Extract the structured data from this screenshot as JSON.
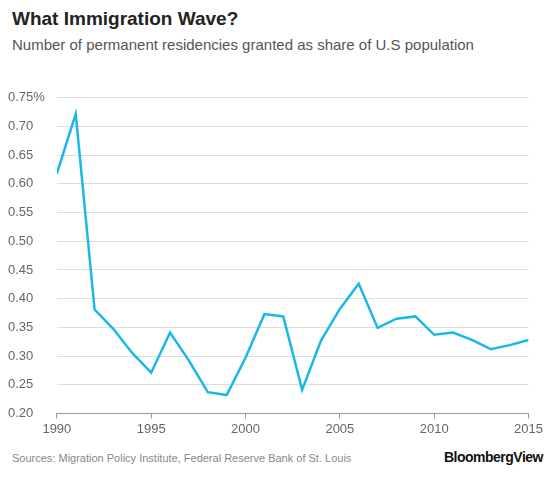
{
  "chart_data": {
    "type": "line",
    "title": "What Immigration Wave?",
    "subtitle": "Number of permanent residencies granted as share of U.S population",
    "annotations": [
      "Sources: Migration Policy Institute, Federal Reserve Bank of St. Louis",
      "BloombergView"
    ],
    "x": [
      1990,
      1991,
      1992,
      1993,
      1994,
      1995,
      1996,
      1997,
      1998,
      1999,
      2000,
      2001,
      2002,
      2003,
      2004,
      2005,
      2006,
      2007,
      2008,
      2009,
      2010,
      2011,
      2012,
      2013,
      2014,
      2015
    ],
    "values": [
      0.618,
      0.722,
      0.381,
      0.347,
      0.305,
      0.271,
      0.341,
      0.292,
      0.237,
      0.232,
      0.297,
      0.373,
      0.369,
      0.241,
      0.327,
      0.382,
      0.426,
      0.349,
      0.365,
      0.369,
      0.337,
      0.341,
      0.328,
      0.312,
      0.319,
      0.328
    ],
    "color": "#1ab7ea",
    "xlim": [
      1990,
      2015
    ],
    "xticks": [
      1990,
      1995,
      2000,
      2005,
      2010,
      2015
    ],
    "ylim": [
      0.2,
      0.75
    ],
    "yticks": [
      {
        "value": 0.2,
        "label": "0.20"
      },
      {
        "value": 0.25,
        "label": "0.25"
      },
      {
        "value": 0.3,
        "label": "0.30"
      },
      {
        "value": 0.35,
        "label": "0.35"
      },
      {
        "value": 0.4,
        "label": "0.40"
      },
      {
        "value": 0.45,
        "label": "0.45"
      },
      {
        "value": 0.5,
        "label": "0.50"
      },
      {
        "value": 0.55,
        "label": "0.55"
      },
      {
        "value": 0.6,
        "label": "0.60"
      },
      {
        "value": 0.65,
        "label": "0.65"
      },
      {
        "value": 0.7,
        "label": "0.70"
      },
      {
        "value": 0.75,
        "label": "0.75%"
      }
    ],
    "grid": true
  }
}
